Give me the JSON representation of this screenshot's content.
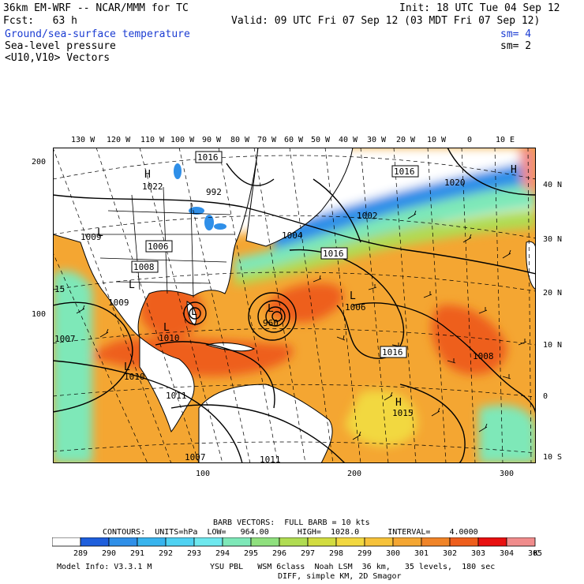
{
  "header": {
    "line1_left": "36km EM-WRF -- NCAR/MMM for TC",
    "line1_right": "Init: 18 UTC Tue 04 Sep 12",
    "line2_left": "Fcst:   63 h",
    "line2_right": "Valid: 09 UTC Fri 07 Sep 12 (03 MDT Fri 07 Sep 12)",
    "field1": "Ground/sea-surface temperature",
    "field1_sm": "sm= 4",
    "field2": "Sea-level pressure",
    "field2_sm": "sm= 2",
    "field3": "<U10,V10> Vectors"
  },
  "map": {
    "top_lon_labels": [
      "130 W",
      "120 W",
      "110 W",
      "100 W",
      "90 W",
      "80 W",
      "70 W",
      "60 W",
      "50 W",
      "40 W",
      "30 W",
      "20 W",
      "10 W",
      "0",
      "10 E"
    ],
    "right_lat_labels": [
      "40 N",
      "30 N",
      "20 N",
      "10 N",
      "0",
      "10 S"
    ],
    "left_grid_labels": [
      "200",
      "100"
    ],
    "bottom_grid_labels": [
      "100",
      "200",
      "300"
    ],
    "pressure_labels": [
      {
        "text": "1016",
        "boxed": true
      },
      {
        "text": "1016",
        "boxed": true
      },
      {
        "text": "1020",
        "boxed": false
      },
      {
        "text": "992",
        "boxed": false
      },
      {
        "text": "1022",
        "boxed": false
      },
      {
        "text": "1002",
        "boxed": false
      },
      {
        "text": "1009",
        "boxed": false
      },
      {
        "text": "1006",
        "boxed": true
      },
      {
        "text": "1008",
        "boxed": true
      },
      {
        "text": "1004",
        "boxed": false
      },
      {
        "text": "1016",
        "boxed": true
      },
      {
        "text": "1009",
        "boxed": false
      },
      {
        "text": "960",
        "boxed": false
      },
      {
        "text": "1006",
        "boxed": false
      },
      {
        "text": "1007",
        "boxed": false
      },
      {
        "text": "1016",
        "boxed": true
      },
      {
        "text": "1008",
        "boxed": false
      },
      {
        "text": "1010",
        "boxed": false
      },
      {
        "text": "1015",
        "boxed": false
      },
      {
        "text": "1007",
        "boxed": false
      },
      {
        "text": "1011",
        "boxed": false
      },
      {
        "text": "15",
        "boxed": false
      },
      {
        "text": "1010",
        "boxed": false
      },
      {
        "text": "1011",
        "boxed": false
      }
    ],
    "centers": [
      "H",
      "H",
      "L",
      "L",
      "L",
      "L",
      "L",
      "L",
      "H",
      "L"
    ]
  },
  "info": {
    "barb": "BARB VECTORS:  FULL BARB = 10 kts",
    "contours": "CONTOURS:  UNITS=hPa  LOW=   964.00      HIGH=  1028.0      INTERVAL=    4.0000",
    "model": "Model Info: V3.3.1 M",
    "physics": "YSU PBL   WSM 6class  Noah LSM  36 km,   35 levels,  180 sec",
    "diff": "DIFF, simple KM, 2D Smagor"
  },
  "colorbar": {
    "labels": [
      "289",
      "290",
      "291",
      "292",
      "293",
      "294",
      "295",
      "296",
      "297",
      "298",
      "299",
      "300",
      "301",
      "302",
      "303",
      "304",
      "305"
    ],
    "unit": "K",
    "colors": [
      "#ffffff",
      "#1f5fdc",
      "#2f8fe8",
      "#38b4ee",
      "#4fd2f2",
      "#6ee8ee",
      "#7ee8b8",
      "#8fe07e",
      "#b0dc52",
      "#d2dc40",
      "#f2d840",
      "#f6c23a",
      "#f4a632",
      "#f08428",
      "#ee5e1c",
      "#e81010",
      "#f08c8c"
    ]
  }
}
